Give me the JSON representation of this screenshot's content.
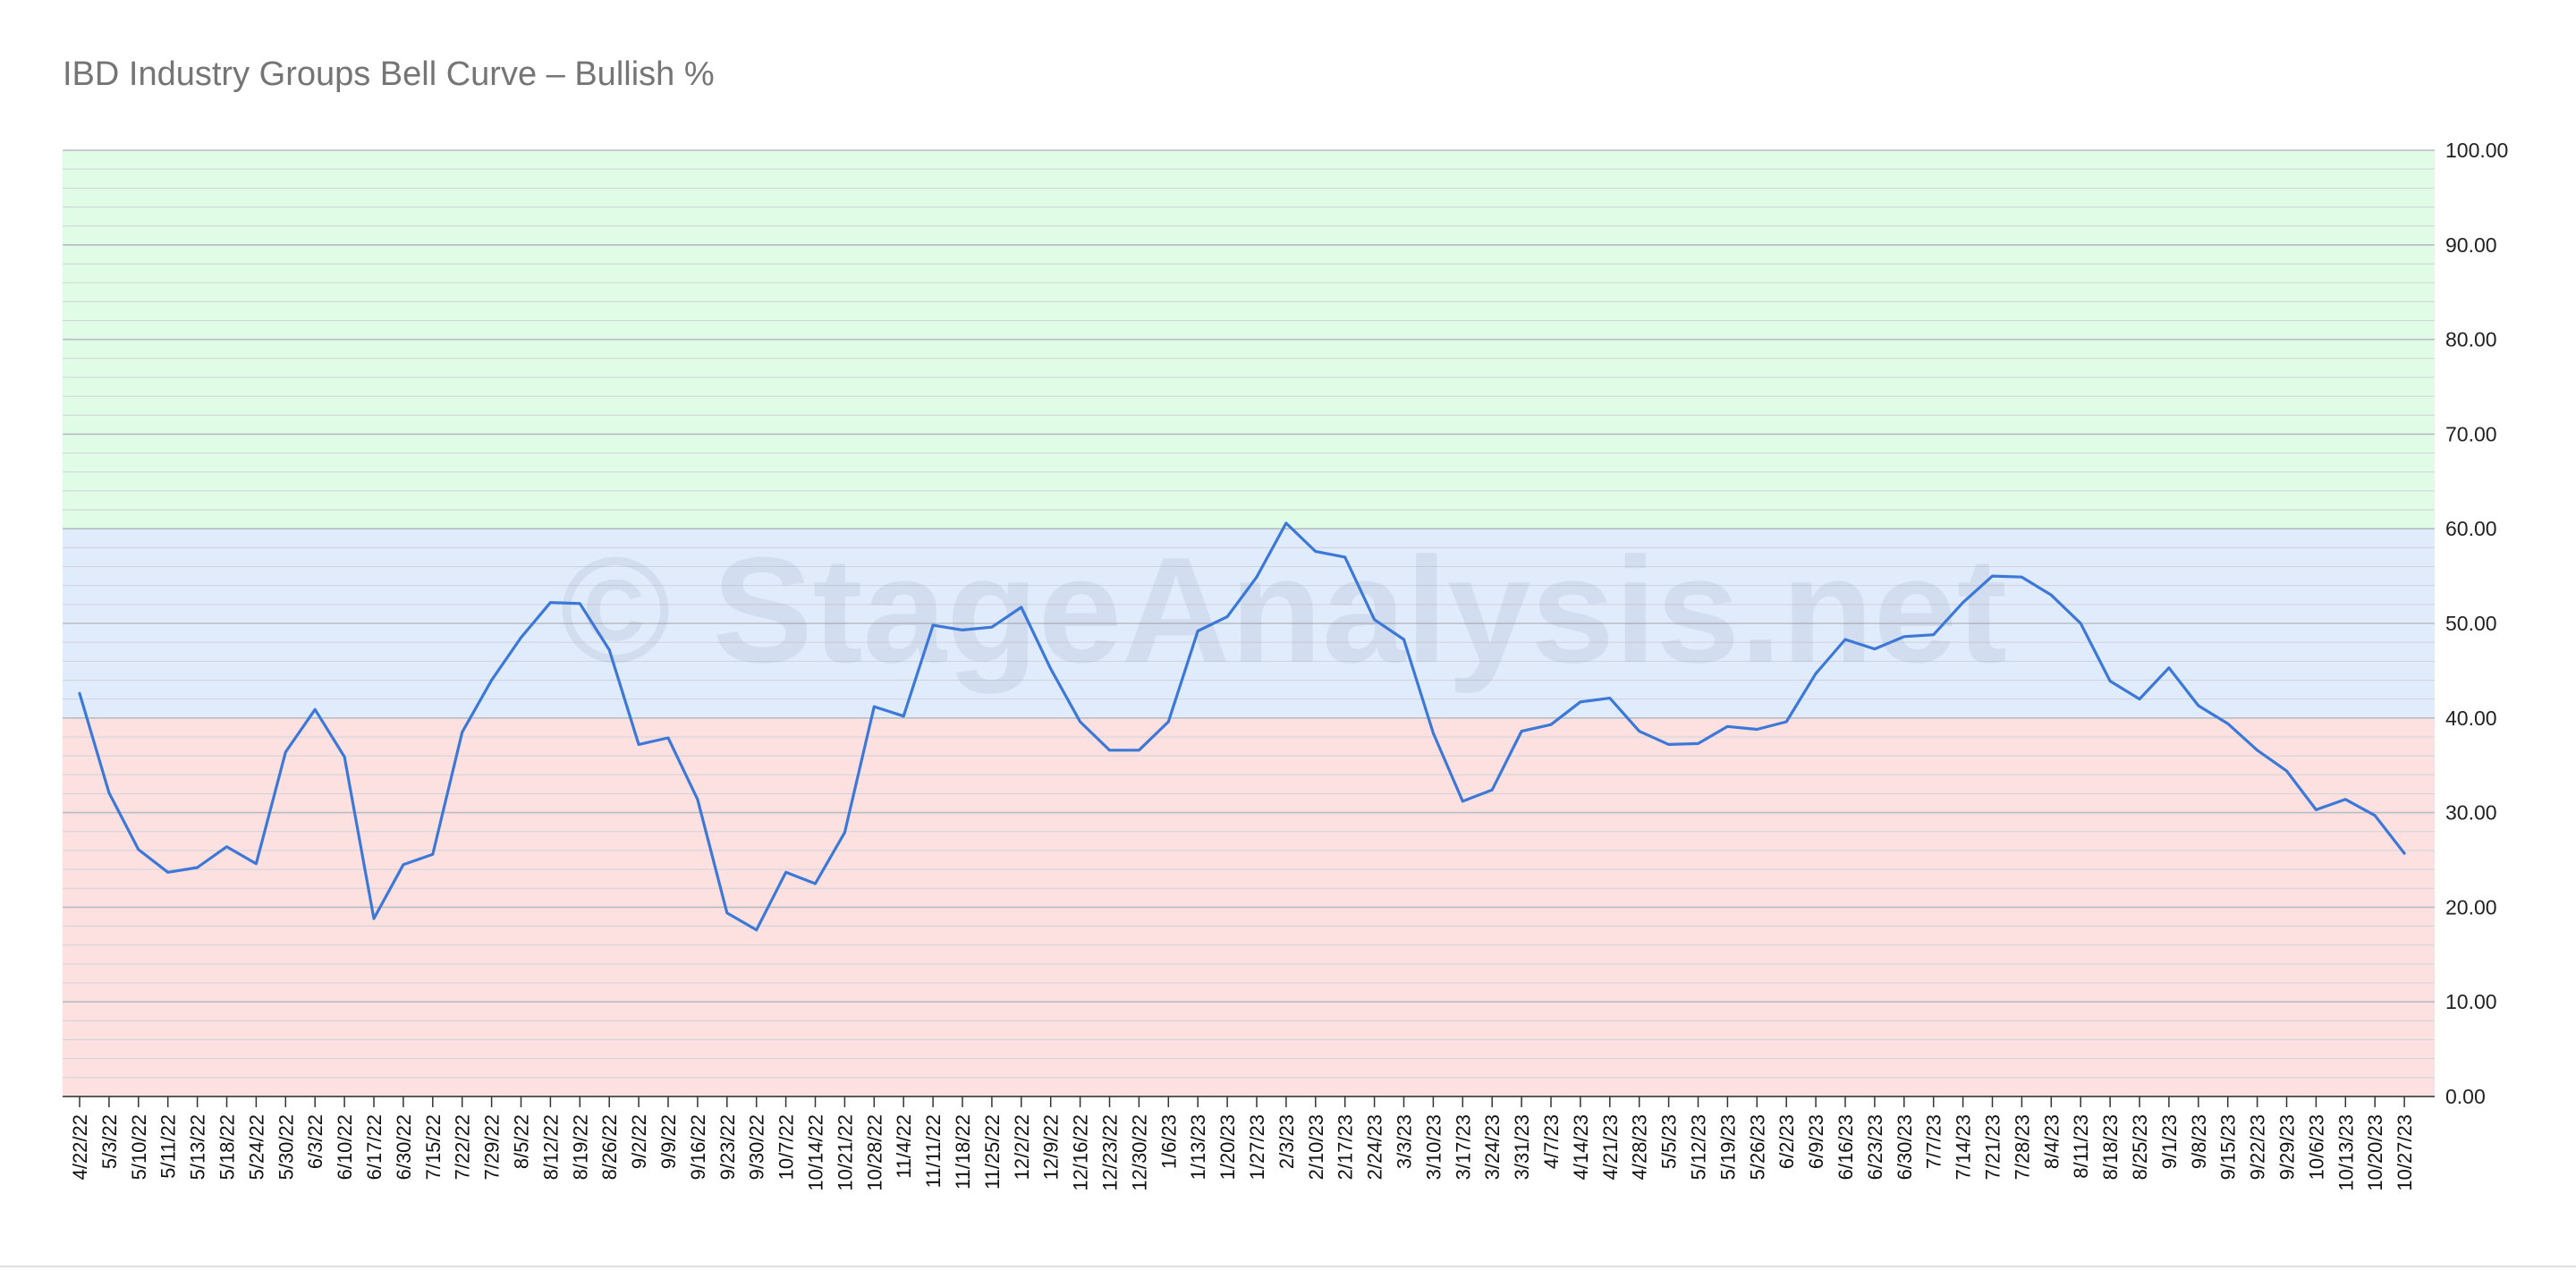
{
  "title": "IBD Industry Groups Bell Curve – Bullish %",
  "watermark": "© StageAnalysis.net",
  "chart_data": {
    "type": "line",
    "title": "IBD Industry Groups Bell Curve – Bullish %",
    "xlabel": "",
    "ylabel": "",
    "ylim": [
      0,
      100
    ],
    "y_ticks": [
      "0.00",
      "10.00",
      "20.00",
      "30.00",
      "40.00",
      "50.00",
      "60.00",
      "70.00",
      "80.00",
      "90.00",
      "100.00"
    ],
    "y_axis_side": "right",
    "grid": true,
    "legend": "none",
    "bands": [
      {
        "from": 0,
        "to": 40,
        "color": "#fde0e0"
      },
      {
        "from": 40,
        "to": 60,
        "color": "#e0ebfc"
      },
      {
        "from": 60,
        "to": 100,
        "color": "#e0fbe6"
      }
    ],
    "line_color": "#3c78d8",
    "x": [
      "4/22/22",
      "5/3/22",
      "5/10/22",
      "5/11/22",
      "5/13/22",
      "5/18/22",
      "5/24/22",
      "5/30/22",
      "6/3/22",
      "6/10/22",
      "6/17/22",
      "6/30/22",
      "7/15/22",
      "7/22/22",
      "7/29/22",
      "8/5/22",
      "8/12/22",
      "8/19/22",
      "8/26/22",
      "9/2/22",
      "9/9/22",
      "9/16/22",
      "9/23/22",
      "9/30/22",
      "10/7/22",
      "10/14/22",
      "10/21/22",
      "10/28/22",
      "11/4/22",
      "11/11/22",
      "11/18/22",
      "11/25/22",
      "12/2/22",
      "12/9/22",
      "12/16/22",
      "12/23/22",
      "12/30/22",
      "1/6/23",
      "1/13/23",
      "1/20/23",
      "1/27/23",
      "2/3/23",
      "2/10/23",
      "2/17/23",
      "2/24/23",
      "3/3/23",
      "3/10/23",
      "3/17/23",
      "3/24/23",
      "3/31/23",
      "4/7/23",
      "4/14/23",
      "4/21/23",
      "4/28/23",
      "5/5/23",
      "5/12/23",
      "5/19/23",
      "5/26/23",
      "6/2/23",
      "6/9/23",
      "6/16/23",
      "6/23/23",
      "6/30/23",
      "7/7/23",
      "7/14/23",
      "7/21/23",
      "7/28/23",
      "8/4/23",
      "8/11/23",
      "8/18/23",
      "8/25/23",
      "9/1/23",
      "9/8/23",
      "9/15/23",
      "9/22/23",
      "9/29/23",
      "10/6/23",
      "10/13/23",
      "10/20/23",
      "10/27/23"
    ],
    "series": [
      {
        "values": [
          42.6,
          32.1,
          26.1,
          23.7,
          24.2,
          26.4,
          24.6,
          36.4,
          40.9,
          35.9,
          18.8,
          24.5,
          25.6,
          38.5,
          44.0,
          48.5,
          52.2,
          52.1,
          47.2,
          37.2,
          37.9,
          31.4,
          19.4,
          17.6,
          23.7,
          22.5,
          27.9,
          41.2,
          40.2,
          49.8,
          49.3,
          49.6,
          51.7,
          45.2,
          39.6,
          36.6,
          36.6,
          39.6,
          49.2,
          50.7,
          54.9,
          60.6,
          57.6,
          57.0,
          50.4,
          48.3,
          38.4,
          31.2,
          32.4,
          38.6,
          39.3,
          41.7,
          42.1,
          38.6,
          37.2,
          37.3,
          39.1,
          38.8,
          39.6,
          44.7,
          48.3,
          47.3,
          48.6,
          48.8,
          52.2,
          55.0,
          54.9,
          53.0,
          50.0,
          43.9,
          42.0,
          45.3,
          41.3,
          39.4,
          36.6,
          34.4,
          30.3,
          31.4,
          29.7,
          25.7
        ]
      }
    ]
  }
}
